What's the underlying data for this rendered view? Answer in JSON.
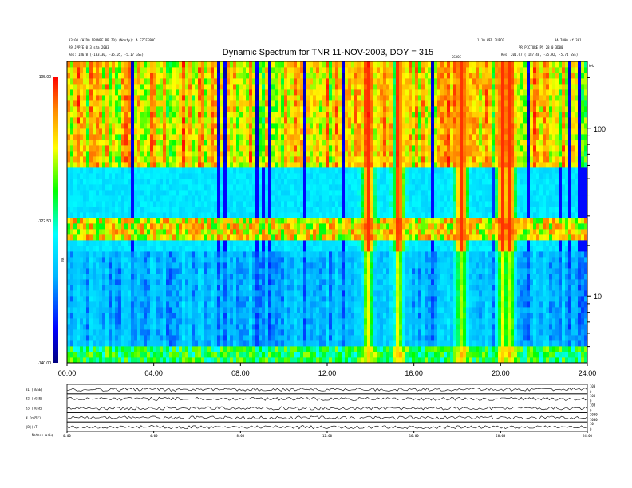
{
  "header": {
    "left_line1": "A3:00 CHIDO DPCNBF PB Z0) (Nonfy): A FZCFE9HC",
    "left_line2": "A9 JPPFE 0 3 sfa 2003",
    "left_line3": "Res: 18678 (-183.30, -35.05, -5.17 GSE)",
    "right_line1": "1:10 WED 2UFC0",
    "right_line2": "L 3A 7000 sf 301",
    "right_line3": "PR PICTURE PS 28 0 3D00",
    "right_line4": "Res: 201.07 (-187.48, -35.92, -5.74 GSE)",
    "mid_label": "GSVOE"
  },
  "chart_data": {
    "type": "heatmap",
    "title": "Dynamic Spectrum for TNR 11-NOV-2003, DOY = 315",
    "x": [
      "00:00",
      "04:00",
      "08:00",
      "12:00",
      "16:00",
      "20:00",
      "24:00"
    ],
    "x_hours": [
      0,
      4,
      8,
      12,
      16,
      20,
      24
    ],
    "xlim_hours": [
      0,
      24
    ],
    "y_scale": "log",
    "y_ticks": [
      10,
      100
    ],
    "y_unit": "kHz",
    "ylim": [
      4,
      250
    ],
    "colorbar": {
      "label": "TNR",
      "ticks": [
        "-105.00",
        "-122.50",
        "-140.00"
      ],
      "range": [
        -140,
        -105
      ],
      "colors": [
        "#000080",
        "#0000ff",
        "#00b4ff",
        "#00ffff",
        "#00ff00",
        "#ffff00",
        "#ff8c00",
        "#ff0000"
      ]
    },
    "features": {
      "band_edges_khz": [
        60,
        18
      ],
      "emission_band_khz": [
        22,
        30
      ],
      "bursts_hours": [
        13.9,
        15.3,
        18.2,
        20.1,
        20.4
      ]
    },
    "panels": [
      {
        "label": "B1 (nGSE)",
        "right_ticks": [
          "100",
          "0"
        ]
      },
      {
        "label": "B2 (nGSE)",
        "right_ticks": [
          "100",
          "0"
        ]
      },
      {
        "label": "B3 (nGSE)",
        "right_ticks": [
          "100",
          "0"
        ]
      },
      {
        "label": "N (nGSE)",
        "right_ticks": [
          "2000",
          "1000"
        ]
      },
      {
        "label": "|B|(nT)",
        "right_ticks": [
          "10",
          "0"
        ]
      }
    ],
    "bottom_x": [
      "0:00",
      "4:00",
      "8:00",
      "12:00",
      "16:00",
      "20:00",
      "24:00"
    ],
    "footer_label": "Notes: ariq"
  }
}
